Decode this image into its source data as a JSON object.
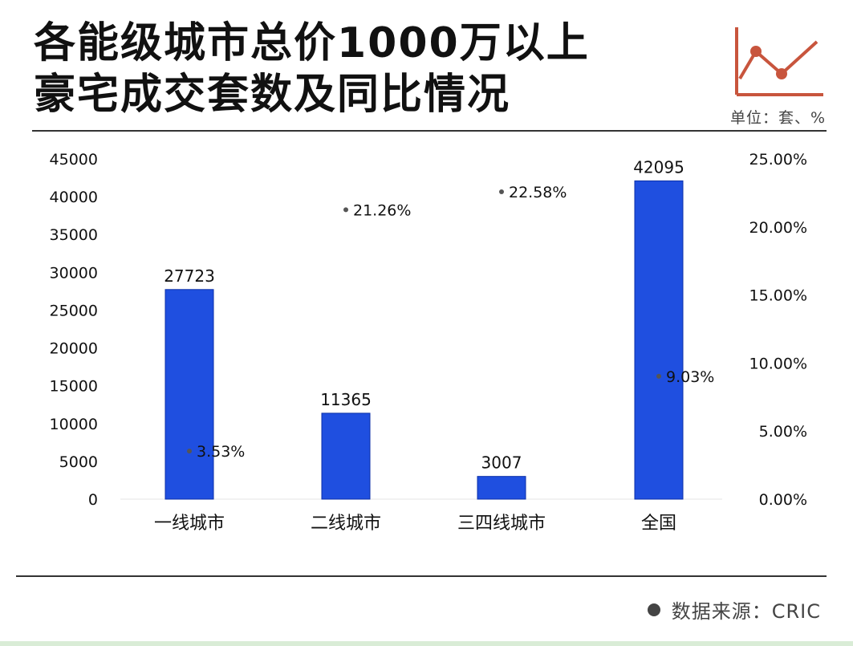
{
  "title_line1": "各能级城市总价1000万以上",
  "title_line2": "豪宅成交套数及同比情况",
  "unit": "单位：套、%",
  "source": "数据来源：CRIC",
  "colors": {
    "bar": "#1f4fe0",
    "text": "#111111",
    "accent": "#c8553d"
  },
  "icon": "line-chart-icon",
  "chart_data": {
    "type": "bar",
    "categories": [
      "一线城市",
      "二线城市",
      "三四线城市",
      "全国"
    ],
    "series": [
      {
        "values": [
          27723,
          11365,
          3007,
          42095
        ],
        "labels": [
          "27723",
          "11365",
          "3007",
          "42095"
        ],
        "axis": "left",
        "kind": "bar"
      },
      {
        "values": [
          3.53,
          21.26,
          22.58,
          9.03
        ],
        "labels": [
          "3.53%",
          "21.26%",
          "22.58%",
          "9.03%"
        ],
        "axis": "right",
        "kind": "point"
      }
    ],
    "ylim": [
      0,
      45000
    ],
    "y_ticks": [
      "0",
      "5000",
      "10000",
      "15000",
      "20000",
      "25000",
      "30000",
      "35000",
      "40000",
      "45000"
    ],
    "y2lim": [
      0,
      25
    ],
    "y2_ticks": [
      "0.00%",
      "5.00%",
      "10.00%",
      "15.00%",
      "20.00%",
      "25.00%"
    ],
    "grid": false
  }
}
